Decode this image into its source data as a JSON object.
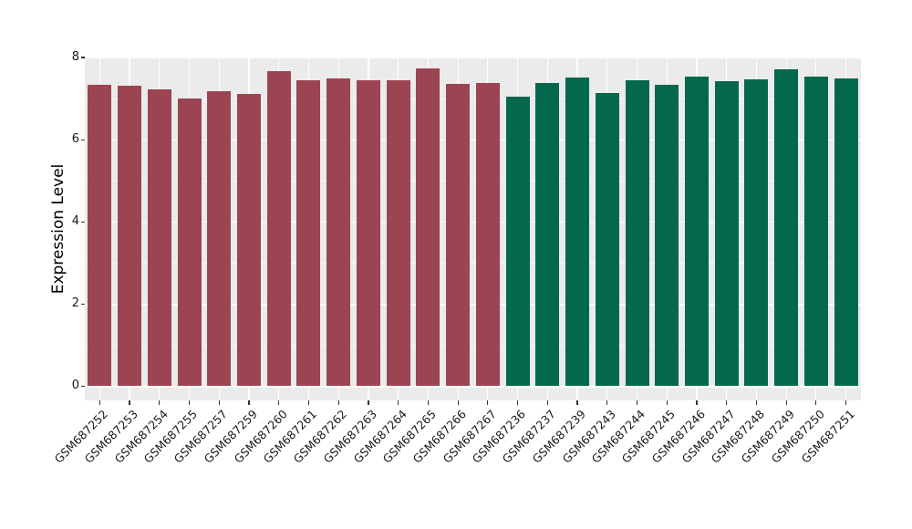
{
  "chart_data": {
    "type": "bar",
    "title": "",
    "ylabel": "Expression Level",
    "xlabel": "",
    "ylim": [
      0,
      8
    ],
    "yticks": [
      "0",
      "2",
      "4",
      "6",
      "8"
    ],
    "ytick_values": [
      0,
      2,
      4,
      6,
      8
    ],
    "minor_tick_values": [
      1,
      3,
      5,
      7
    ],
    "grid": "on",
    "legend_position": "none",
    "panel_bg": "#EBEBEB",
    "grid_color": "#FFFFFF",
    "tick_color": "#333333",
    "groups": [
      {
        "name": "group-red",
        "color": "#9D4452"
      },
      {
        "name": "group-green",
        "color": "#03684C"
      }
    ],
    "bars": [
      {
        "label": "GSM687252",
        "value": 7.33,
        "group": 0
      },
      {
        "label": "GSM687253",
        "value": 7.32,
        "group": 0
      },
      {
        "label": "GSM687254",
        "value": 7.23,
        "group": 0
      },
      {
        "label": "GSM687255",
        "value": 7.0,
        "group": 0
      },
      {
        "label": "GSM687257",
        "value": 7.17,
        "group": 0
      },
      {
        "label": "GSM687259",
        "value": 7.11,
        "group": 0
      },
      {
        "label": "GSM687260",
        "value": 7.66,
        "group": 0
      },
      {
        "label": "GSM687261",
        "value": 7.44,
        "group": 0
      },
      {
        "label": "GSM687262",
        "value": 7.48,
        "group": 0
      },
      {
        "label": "GSM687263",
        "value": 7.44,
        "group": 0
      },
      {
        "label": "GSM687264",
        "value": 7.44,
        "group": 0
      },
      {
        "label": "GSM687265",
        "value": 7.73,
        "group": 0
      },
      {
        "label": "GSM687266",
        "value": 7.36,
        "group": 0
      },
      {
        "label": "GSM687267",
        "value": 7.38,
        "group": 0
      },
      {
        "label": "GSM687236",
        "value": 7.04,
        "group": 1
      },
      {
        "label": "GSM687237",
        "value": 7.37,
        "group": 1
      },
      {
        "label": "GSM687239",
        "value": 7.5,
        "group": 1
      },
      {
        "label": "GSM687243",
        "value": 7.13,
        "group": 1
      },
      {
        "label": "GSM687244",
        "value": 7.44,
        "group": 1
      },
      {
        "label": "GSM687245",
        "value": 7.34,
        "group": 1
      },
      {
        "label": "GSM687246",
        "value": 7.53,
        "group": 1
      },
      {
        "label": "GSM687247",
        "value": 7.43,
        "group": 1
      },
      {
        "label": "GSM687248",
        "value": 7.46,
        "group": 1
      },
      {
        "label": "GSM687249",
        "value": 7.7,
        "group": 1
      },
      {
        "label": "GSM687250",
        "value": 7.53,
        "group": 1
      },
      {
        "label": "GSM687251",
        "value": 7.48,
        "group": 1
      }
    ]
  }
}
